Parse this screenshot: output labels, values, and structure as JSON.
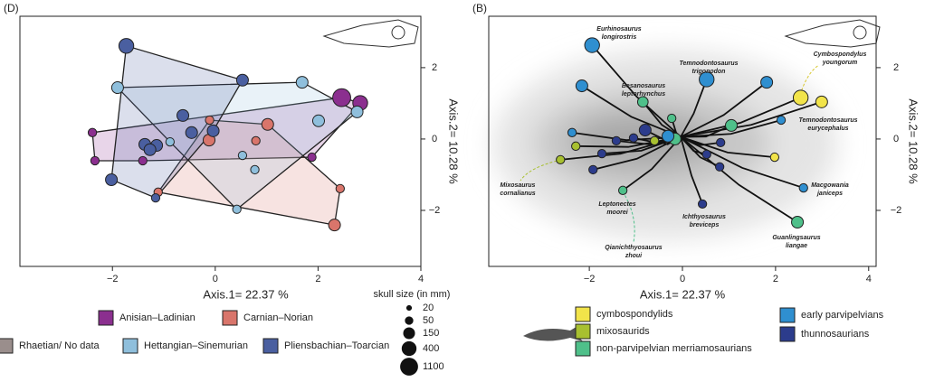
{
  "chart_data": [
    {
      "type": "scatter",
      "panel": "(D)",
      "xlabel": "Axis.1= 22.37 %",
      "ylabel": "Axis.2= 10.28 %",
      "xlim": [
        -3.8,
        4.0
      ],
      "ylim": [
        -3.57,
        3.44
      ],
      "xticks": [
        {
          "value": -2,
          "label": "−2"
        },
        0,
        2,
        4
      ],
      "yticks": [
        {
          "value": -2,
          "label": "−2"
        },
        0,
        2
      ],
      "hull": true,
      "series": [
        {
          "name": "Anisian–Ladinian",
          "color": "#8b2f8f",
          "x": [
            2.46,
            2.82,
            -2.39,
            -2.34,
            -1.41,
            1.88
          ],
          "y": [
            1.16,
            1.01,
            0.18,
            -0.61,
            -0.61,
            -0.51
          ],
          "sizes": [
            1100,
            400,
            50,
            50,
            50,
            50
          ]
        },
        {
          "name": "Carnian–Norian",
          "color": "#d9756b",
          "x": [
            -0.11,
            -0.12,
            1.02,
            -1.11,
            2.43,
            2.32,
            0.79
          ],
          "y": [
            0.53,
            -0.03,
            0.41,
            -1.49,
            -1.39,
            -2.41,
            -0.05
          ],
          "sizes": [
            50,
            150,
            150,
            50,
            50,
            150,
            50
          ]
        },
        {
          "name": "Rhaetian/ No data",
          "color": "#9a8e8c",
          "x": [],
          "y": [],
          "sizes": []
        },
        {
          "name": "Hettangian–Sinemurian",
          "color": "#8fbfdc",
          "x": [
            -1.9,
            1.69,
            2.01,
            2.76,
            0.53,
            0.77,
            0.42,
            -0.88
          ],
          "y": [
            1.44,
            1.59,
            0.51,
            0.76,
            -0.46,
            -0.86,
            -1.97,
            -0.08
          ],
          "sizes": [
            150,
            150,
            150,
            150,
            50,
            50,
            50,
            50
          ]
        },
        {
          "name": "Pliensbachian–Toarcian",
          "color": "#4a5fa0",
          "x": [
            -1.73,
            0.53,
            -0.63,
            -0.46,
            -0.04,
            -1.37,
            -1.14,
            -1.27,
            -2.02,
            -1.16
          ],
          "y": [
            2.61,
            1.65,
            0.66,
            0.18,
            0.23,
            -0.15,
            -0.18,
            -0.3,
            -1.14,
            -1.65
          ],
          "sizes": [
            400,
            150,
            150,
            150,
            150,
            150,
            150,
            150,
            150,
            50
          ]
        }
      ],
      "size_legend": {
        "title": "skull size (in mm)",
        "sizes": [
          20,
          50,
          150,
          400,
          1100
        ]
      }
    },
    {
      "type": "scatter",
      "panel": "(B)",
      "xlabel": "Axis.1= 22.37 %",
      "ylabel": "Axis.2= 10.28 %",
      "xlim": [
        -4.16,
        4.16
      ],
      "ylim": [
        -3.57,
        3.44
      ],
      "xticks": [
        {
          "value": -2,
          "label": "−2"
        },
        0,
        2,
        4
      ],
      "yticks": [
        {
          "value": -2,
          "label": "−2"
        },
        0,
        2
      ],
      "tree": true,
      "series": [
        {
          "name": "cymbospondylids",
          "color": "#f2e44a",
          "x": [
            2.54,
            2.99,
            1.98
          ],
          "y": [
            1.16,
            1.04,
            -0.51
          ],
          "sizes": [
            400,
            150,
            50
          ]
        },
        {
          "name": "mixosaurids",
          "color": "#a8c030",
          "x": [
            -2.62,
            -2.29,
            -0.6
          ],
          "y": [
            -0.58,
            -0.2,
            -0.05
          ],
          "sizes": [
            50,
            50,
            50
          ]
        },
        {
          "name": "non-parvipelvian merriamosaurians",
          "color": "#4fc08a",
          "x": [
            -0.85,
            -0.23,
            1.05,
            -1.28,
            2.47,
            -0.16
          ],
          "y": [
            1.04,
            0.58,
            0.38,
            -1.44,
            -2.33,
            0.0
          ],
          "sizes": [
            100,
            50,
            150,
            50,
            150,
            150
          ]
        },
        {
          "name": "early parvipelvians",
          "color": "#2f8fd0",
          "x": [
            -1.94,
            -2.16,
            0.52,
            1.81,
            2.12,
            2.6,
            -2.37,
            -0.31
          ],
          "y": [
            2.63,
            1.49,
            1.67,
            1.59,
            0.53,
            -1.37,
            0.18,
            0.08
          ],
          "sizes": [
            400,
            150,
            400,
            150,
            50,
            50,
            50,
            150
          ]
        },
        {
          "name": "thunnosaurians",
          "color": "#2c3c8c",
          "x": [
            0.43,
            -0.8,
            -1.42,
            -1.92,
            -1.73,
            0.82,
            0.8,
            0.52,
            -1.05
          ],
          "y": [
            -1.82,
            0.25,
            -0.05,
            -0.86,
            -0.41,
            -0.1,
            -0.78,
            -0.43,
            0.03
          ],
          "sizes": [
            50,
            150,
            50,
            50,
            50,
            50,
            50,
            50,
            50
          ]
        }
      ],
      "annotations": [
        [
          "Eurhinosaurus",
          "longirostris"
        ],
        [
          "Temnodontosaurus",
          "trigonodon"
        ],
        [
          "Cymbospondylus",
          "youngorum"
        ],
        [
          "Besanosaurus",
          "leptorhynchus"
        ],
        [
          "Temnodontosaurus",
          "eurycephalus"
        ],
        [
          "Mixosaurus",
          "cornalianus"
        ],
        [
          "Leptonectes",
          "moorei"
        ],
        [
          "Ichthyosaurus",
          "breviceps"
        ],
        [
          "Macgowania",
          "janiceps"
        ],
        [
          "Guanlingsaurus",
          "liangae"
        ],
        [
          "Qianichthyosaurus",
          "zhoui"
        ]
      ]
    }
  ]
}
